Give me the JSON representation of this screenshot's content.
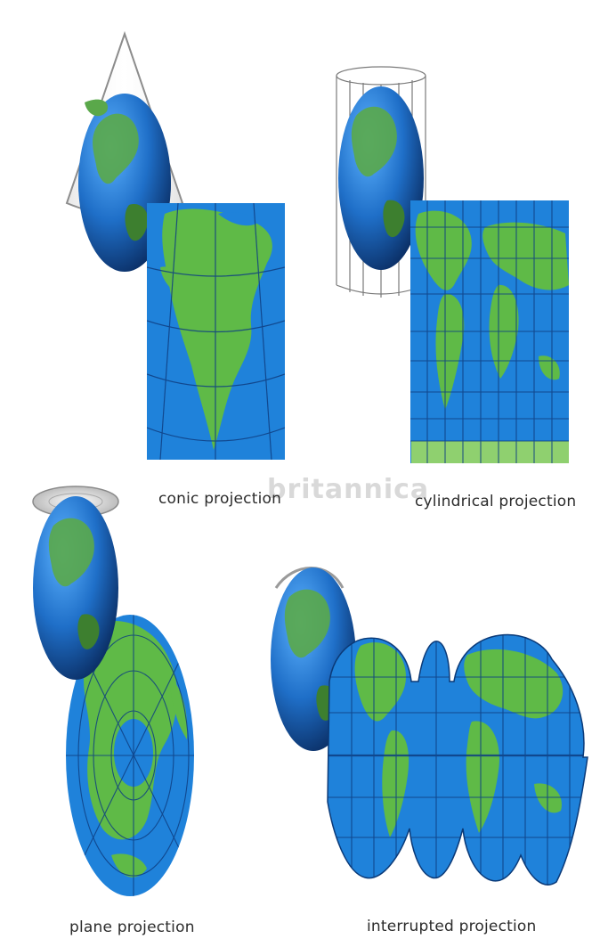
{
  "captions": {
    "conic": "conic projection",
    "cylindrical": "cylindrical projection",
    "plane": "plane projection",
    "interrupted": "interrupted projection"
  },
  "watermark": "britannica",
  "colors": {
    "ocean": "#1f7fd6",
    "ocean_dark": "#0d4a8f",
    "land": "#63b84a",
    "grid": "#0f3f82",
    "cone": "#9a9a9a"
  }
}
